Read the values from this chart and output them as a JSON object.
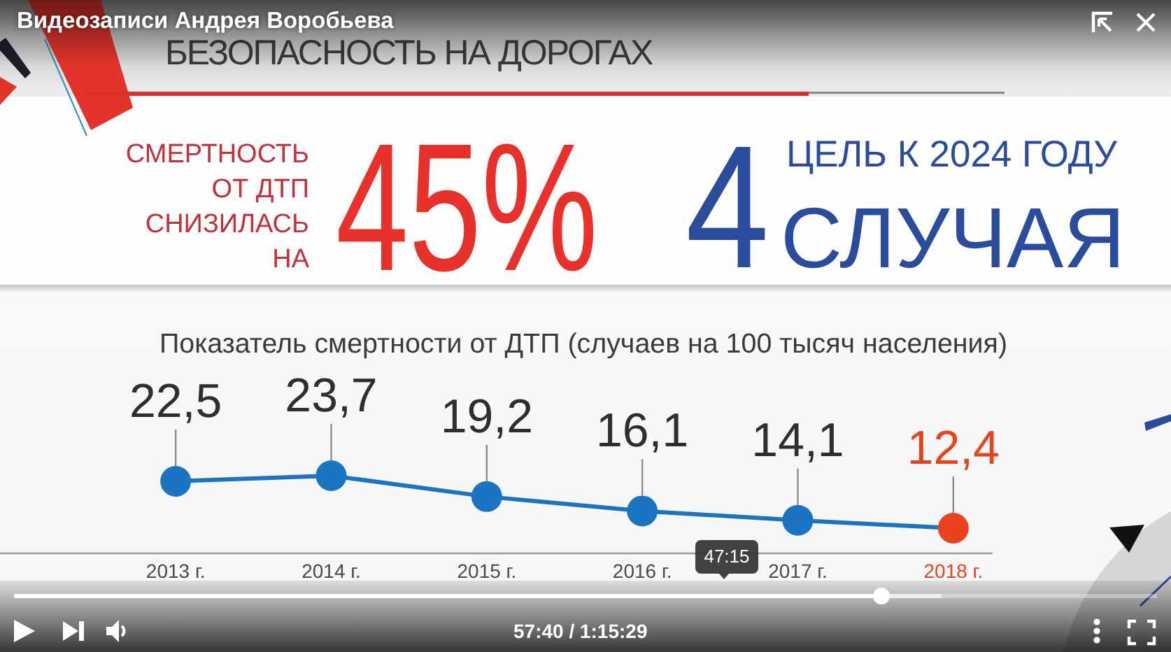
{
  "chart_data": {
    "type": "line",
    "title": "Показатель смертности от ДТП (случаев на 100 тысяч населения)",
    "categories": [
      "2013 г.",
      "2014 г.",
      "2015 г.",
      "2016 г.",
      "2017 г.",
      "2018 г."
    ],
    "values": [
      22.5,
      23.7,
      19.2,
      16.1,
      14.1,
      12.4
    ],
    "color": "#1a74c2",
    "colors": [
      "#1a74c2",
      "#1a74c2",
      "#1a74c2",
      "#1a74c2",
      "#1a74c2",
      "#e8421e"
    ],
    "value_labels": [
      "22,5",
      "23,7",
      "19,2",
      "16,1",
      "14,1",
      "12,4"
    ],
    "marker": "circle",
    "grid": false,
    "legend": false,
    "tick_labels": "x",
    "annotations": [
      "БЕЗОПАСНОСТЬ НА ДОРОГАХ",
      "СМЕРТНОСТЬ\nОТ ДТП\nСНИЗИЛАСЬ\nНА",
      "45%",
      "4",
      "ЦЕЛЬ К 2024 ГОДУ",
      "СЛУЧАЯ",
      "Видеозаписи Андрея Воробьева",
      "47:15",
      "57:40 / 1:15:29"
    ]
  }
}
